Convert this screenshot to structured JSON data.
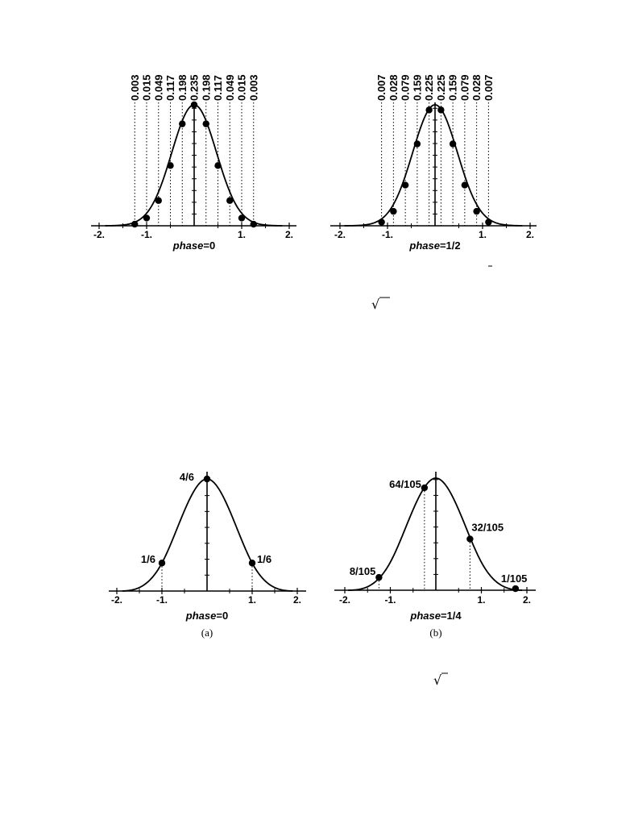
{
  "chart_data": [
    {
      "type": "scatter",
      "caption": {
        "prefix": "phase",
        "suffix": "=0"
      },
      "x_ticks": [
        "-2.",
        "-1.",
        "1.",
        "2."
      ],
      "xlim": [
        -2,
        2
      ],
      "points": [
        {
          "x": -1.25,
          "y": 0.003,
          "label": "0.003"
        },
        {
          "x": -1.0,
          "y": 0.015,
          "label": "0.015"
        },
        {
          "x": -0.75,
          "y": 0.049,
          "label": "0.049"
        },
        {
          "x": -0.5,
          "y": 0.117,
          "label": "0.117"
        },
        {
          "x": -0.25,
          "y": 0.198,
          "label": "0.198"
        },
        {
          "x": 0.0,
          "y": 0.235,
          "label": "0.235"
        },
        {
          "x": 0.25,
          "y": 0.198,
          "label": "0.198"
        },
        {
          "x": 0.5,
          "y": 0.117,
          "label": "0.117"
        },
        {
          "x": 0.75,
          "y": 0.049,
          "label": "0.049"
        },
        {
          "x": 1.0,
          "y": 0.015,
          "label": "0.015"
        },
        {
          "x": 1.25,
          "y": 0.003,
          "label": "0.003"
        }
      ]
    },
    {
      "type": "scatter",
      "caption": {
        "prefix": "phase",
        "suffix": "=1/2"
      },
      "x_ticks": [
        "-2.",
        "-1.",
        "1.",
        "2."
      ],
      "xlim": [
        -2,
        2
      ],
      "points": [
        {
          "x": -1.125,
          "y": 0.007,
          "label": "0.007"
        },
        {
          "x": -0.875,
          "y": 0.028,
          "label": "0.028"
        },
        {
          "x": -0.625,
          "y": 0.079,
          "label": "0.079"
        },
        {
          "x": -0.375,
          "y": 0.159,
          "label": "0.159"
        },
        {
          "x": -0.125,
          "y": 0.225,
          "label": "0.225"
        },
        {
          "x": 0.125,
          "y": 0.225,
          "label": "0.225"
        },
        {
          "x": 0.375,
          "y": 0.159,
          "label": "0.159"
        },
        {
          "x": 0.625,
          "y": 0.079,
          "label": "0.079"
        },
        {
          "x": 0.875,
          "y": 0.028,
          "label": "0.028"
        },
        {
          "x": 1.125,
          "y": 0.007,
          "label": "0.007"
        }
      ]
    },
    {
      "type": "scatter",
      "caption": {
        "prefix": "phase",
        "suffix": "=0"
      },
      "sublabel": "(a)",
      "x_ticks": [
        "-2.",
        "-1.",
        "1.",
        "2."
      ],
      "xlim": [
        -2,
        2
      ],
      "points": [
        {
          "x": -1.0,
          "y": 0.1667,
          "label": "1/6"
        },
        {
          "x": 0.0,
          "y": 0.6667,
          "label": "4/6"
        },
        {
          "x": 1.0,
          "y": 0.1667,
          "label": "1/6"
        }
      ]
    },
    {
      "type": "scatter",
      "caption": {
        "prefix": "phase",
        "suffix": "=1/4"
      },
      "sublabel": "(b)",
      "x_ticks": [
        "-2.",
        "-1.",
        "1.",
        "2."
      ],
      "xlim": [
        -2,
        2
      ],
      "points": [
        {
          "x": -1.25,
          "y": 0.0762,
          "label": "8/105"
        },
        {
          "x": -0.25,
          "y": 0.6095,
          "label": "64/105"
        },
        {
          "x": 0.75,
          "y": 0.3048,
          "label": "32/105"
        },
        {
          "x": 1.75,
          "y": 0.0095,
          "label": "1/105"
        }
      ]
    }
  ],
  "extras": {
    "sqrt_symbol": "√"
  }
}
